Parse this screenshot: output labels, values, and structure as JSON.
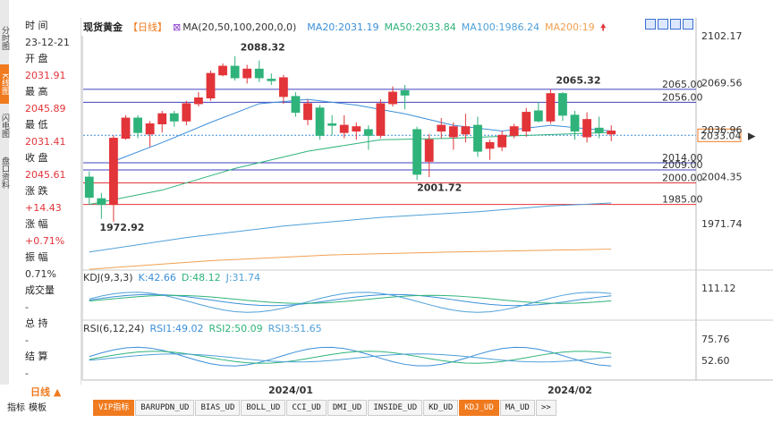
{
  "side_tabs": [
    "分时图",
    "K线图",
    "闪电图",
    "盘口资料"
  ],
  "info_panel": [
    {
      "label": "时 间",
      "value": "23-12-21",
      "value_color": "dark"
    },
    {
      "label": "开 盘",
      "value": "2031.91",
      "value_color": "red"
    },
    {
      "label": "最 高",
      "value": "2045.89",
      "value_color": "red"
    },
    {
      "label": "最 低",
      "value": "2031.41",
      "value_color": "red"
    },
    {
      "label": "收 盘",
      "value": "2045.61",
      "value_color": "red"
    },
    {
      "label": "涨 跌",
      "value": "+14.43",
      "value_color": "red"
    },
    {
      "label": "涨 幅",
      "value": "+0.71%",
      "value_color": "red"
    },
    {
      "label": "振 幅",
      "value": "0.71%",
      "value_color": "dark"
    },
    {
      "label": "成交量",
      "value": "-",
      "value_color": "dark"
    },
    {
      "label": "总 持",
      "value": "-",
      "value_color": "dark"
    },
    {
      "label": "结 算",
      "value": "-",
      "value_color": "dark"
    }
  ],
  "legend": {
    "title": "现货黄金",
    "period": "【日线】",
    "ma_def": "MA(20,50,100,200,0,0)",
    "ma20": "MA20:2031.19",
    "ma50": "MA50:2033.84",
    "ma100": "MA100:1986.24",
    "ma200": "MA200:19"
  },
  "price_axis": [
    "2102.17",
    "2069.56",
    "2036.96",
    "2004.35",
    "1971.74"
  ],
  "current_price": "2033.04",
  "hlines": [
    "2065.00",
    "2056.00",
    "2014.00",
    "2009.00",
    "2000.00",
    "1985.00"
  ],
  "annotations": [
    "2088.32",
    "2065.32",
    "2001.72",
    "1972.92"
  ],
  "kdj": {
    "title": "KDJ(9,3,3)",
    "k": "K:42.66",
    "d": "D:48.12",
    "j": "J:31.74",
    "axis": "111.12"
  },
  "rsi": {
    "title": "RSI(6,12,24)",
    "r1": "RSI1:49.02",
    "r2": "RSI2:50.09",
    "r3": "RSI3:51.65",
    "axis_top": "75.76",
    "axis_bot": "52.60"
  },
  "dates": [
    "2024/01",
    "2024/02"
  ],
  "period_label": "日线 ▲",
  "bottom_left": [
    "指标",
    "模板"
  ],
  "bottom_tabs": [
    "VIP指标",
    "BARUPDN_UD",
    "BIAS_UD",
    "BOLL_UD",
    "CCI_UD",
    "DMI_UD",
    "INSIDE_UD",
    "KD_UD",
    "KDJ_UD",
    "MA_UD",
    ">>"
  ],
  "colors": {
    "up": "#e2353a",
    "down": "#2fb37a",
    "accent": "#f07a1e",
    "ma20": "#3b8fd9",
    "ma50": "#2fb37a",
    "ma100": "#4fa0d8",
    "ma200": "#f0a050"
  },
  "chart_data": {
    "type": "candlestick",
    "candles": [
      {
        "o": 2004,
        "h": 2008,
        "l": 1985,
        "c": 1990
      },
      {
        "o": 1989,
        "h": 1993,
        "l": 1975,
        "c": 1985
      },
      {
        "o": 1985,
        "h": 2033,
        "l": 1973,
        "c": 2031
      },
      {
        "o": 2031,
        "h": 2047,
        "l": 2030,
        "c": 2045
      },
      {
        "o": 2045,
        "h": 2047,
        "l": 2031,
        "c": 2035
      },
      {
        "o": 2034,
        "h": 2043,
        "l": 2025,
        "c": 2041
      },
      {
        "o": 2041,
        "h": 2050,
        "l": 2035,
        "c": 2048
      },
      {
        "o": 2048,
        "h": 2050,
        "l": 2039,
        "c": 2043
      },
      {
        "o": 2043,
        "h": 2057,
        "l": 2040,
        "c": 2055
      },
      {
        "o": 2055,
        "h": 2063,
        "l": 2053,
        "c": 2059
      },
      {
        "o": 2059,
        "h": 2078,
        "l": 2057,
        "c": 2076
      },
      {
        "o": 2075,
        "h": 2083,
        "l": 2074,
        "c": 2081
      },
      {
        "o": 2081,
        "h": 2088,
        "l": 2071,
        "c": 2073
      },
      {
        "o": 2073,
        "h": 2082,
        "l": 2069,
        "c": 2079
      },
      {
        "o": 2079,
        "h": 2085,
        "l": 2070,
        "c": 2073
      },
      {
        "o": 2072,
        "h": 2076,
        "l": 2068,
        "c": 2071
      },
      {
        "o": 2060,
        "h": 2075,
        "l": 2055,
        "c": 2073
      },
      {
        "o": 2060,
        "h": 2063,
        "l": 2046,
        "c": 2049
      },
      {
        "o": 2044,
        "h": 2058,
        "l": 2040,
        "c": 2055
      },
      {
        "o": 2052,
        "h": 2054,
        "l": 2030,
        "c": 2033
      },
      {
        "o": 2041,
        "h": 2047,
        "l": 2033,
        "c": 2040
      },
      {
        "o": 2035,
        "h": 2047,
        "l": 2031,
        "c": 2040
      },
      {
        "o": 2036,
        "h": 2042,
        "l": 2030,
        "c": 2039
      },
      {
        "o": 2037,
        "h": 2040,
        "l": 2023,
        "c": 2033
      },
      {
        "o": 2033,
        "h": 2058,
        "l": 2031,
        "c": 2055
      },
      {
        "o": 2055,
        "h": 2067,
        "l": 2053,
        "c": 2063
      },
      {
        "o": 2064,
        "h": 2068,
        "l": 2051,
        "c": 2061
      },
      {
        "o": 2037,
        "h": 2039,
        "l": 2002,
        "c": 2006
      },
      {
        "o": 2015,
        "h": 2034,
        "l": 2004,
        "c": 2030
      },
      {
        "o": 2036,
        "h": 2045,
        "l": 2031,
        "c": 2040
      },
      {
        "o": 2032,
        "h": 2042,
        "l": 2023,
        "c": 2039
      },
      {
        "o": 2034,
        "h": 2048,
        "l": 2028,
        "c": 2039
      },
      {
        "o": 2040,
        "h": 2046,
        "l": 2018,
        "c": 2022
      },
      {
        "o": 2024,
        "h": 2030,
        "l": 2016,
        "c": 2028
      },
      {
        "o": 2025,
        "h": 2036,
        "l": 2022,
        "c": 2033
      },
      {
        "o": 2033,
        "h": 2041,
        "l": 2031,
        "c": 2039
      },
      {
        "o": 2036,
        "h": 2052,
        "l": 2032,
        "c": 2049
      },
      {
        "o": 2050,
        "h": 2056,
        "l": 2042,
        "c": 2043
      },
      {
        "o": 2043,
        "h": 2065,
        "l": 2041,
        "c": 2062
      },
      {
        "o": 2062,
        "h": 2063,
        "l": 2043,
        "c": 2047
      },
      {
        "o": 2047,
        "h": 2050,
        "l": 2030,
        "c": 2036
      },
      {
        "o": 2032,
        "h": 2049,
        "l": 2028,
        "c": 2044
      },
      {
        "o": 2038,
        "h": 2046,
        "l": 2031,
        "c": 2035
      },
      {
        "o": 2034,
        "h": 2040,
        "l": 2029,
        "c": 2036
      }
    ]
  }
}
